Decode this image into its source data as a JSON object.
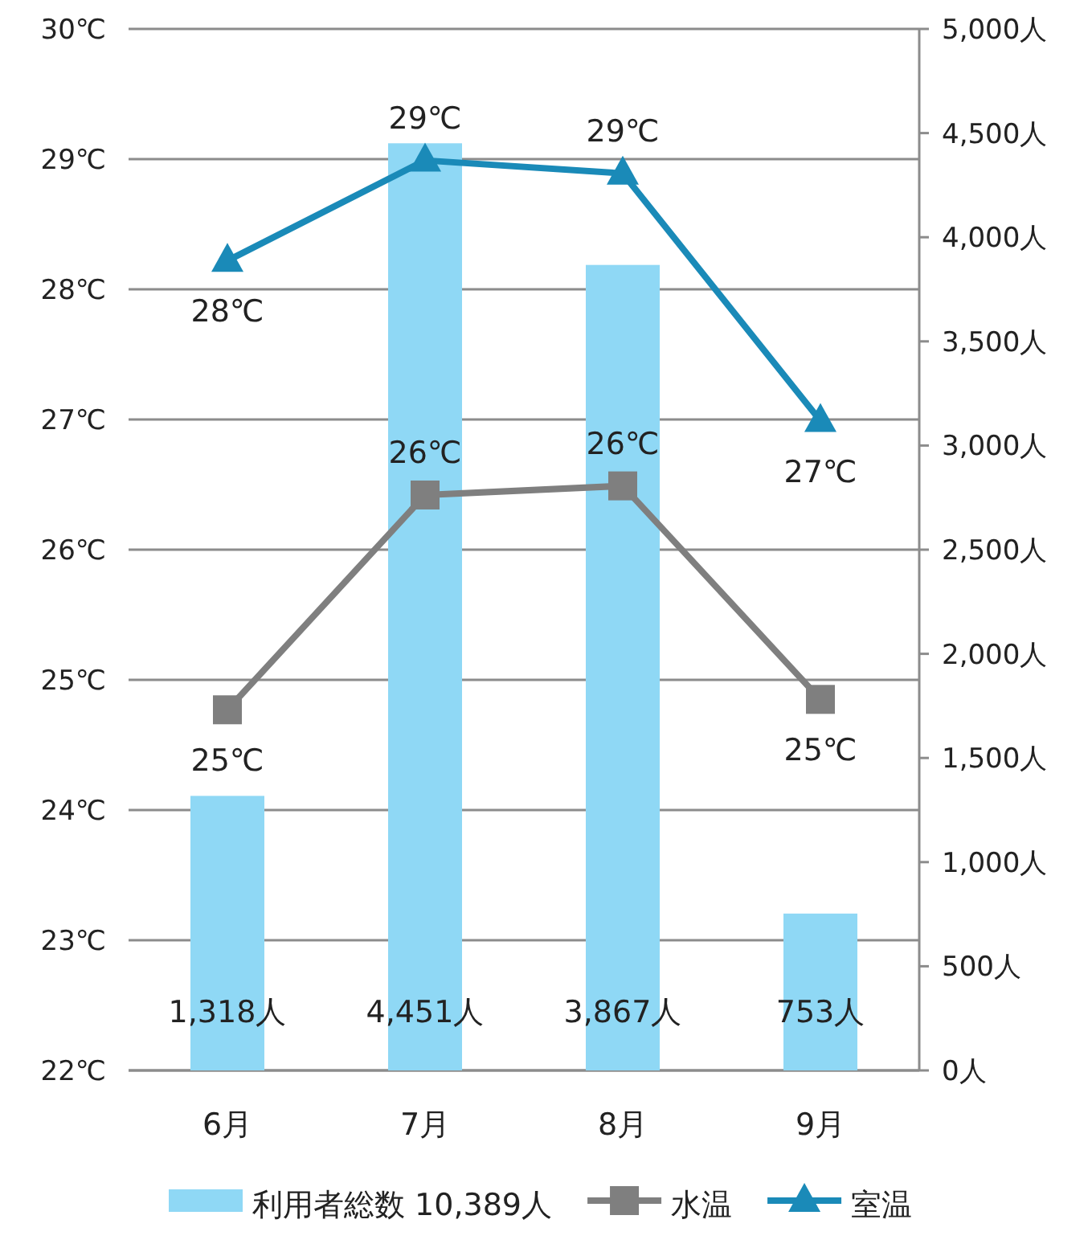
{
  "chart_data": {
    "type": "bar",
    "categories": [
      "6月",
      "7月",
      "8月",
      "9月"
    ],
    "series": [
      {
        "name": "利用者総数 10,389人",
        "axis": "y2",
        "color": "#8fd8f5",
        "values": [
          1318,
          4451,
          3867,
          753
        ],
        "value_labels": [
          "1,318人",
          "4,451人",
          "3,867人",
          "753人"
        ]
      },
      {
        "name": "水温",
        "type": "line",
        "color": "#7f7f7f",
        "marker": "square",
        "values": [
          24.77,
          26.42,
          26.49,
          24.85
        ],
        "value_labels": [
          "25℃",
          "26℃",
          "26℃",
          "25℃"
        ]
      },
      {
        "name": "室温",
        "type": "line",
        "color": "#1a8ab8",
        "marker": "triangle",
        "values": [
          28.22,
          28.99,
          28.89,
          26.99
        ],
        "value_labels": [
          "28℃",
          "29℃",
          "29℃",
          "27℃"
        ]
      }
    ],
    "ylim": [
      22,
      30
    ],
    "yticks": [
      {
        "value": 22,
        "label": "22℃"
      },
      {
        "value": 23,
        "label": "23℃"
      },
      {
        "value": 24,
        "label": "24℃"
      },
      {
        "value": 25,
        "label": "25℃"
      },
      {
        "value": 26,
        "label": "26℃"
      },
      {
        "value": 27,
        "label": "27℃"
      },
      {
        "value": 28,
        "label": "28℃"
      },
      {
        "value": 29,
        "label": "29℃"
      },
      {
        "value": 30,
        "label": "30℃"
      }
    ],
    "y2lim": [
      0,
      5000
    ],
    "y2ticks": [
      {
        "value": 0,
        "label": "0人"
      },
      {
        "value": 500,
        "label": "500人"
      },
      {
        "value": 1000,
        "label": "1,000人"
      },
      {
        "value": 1500,
        "label": "1,500人"
      },
      {
        "value": 2000,
        "label": "2,000人"
      },
      {
        "value": 2500,
        "label": "2,500人"
      },
      {
        "value": 3000,
        "label": "3,000人"
      },
      {
        "value": 3500,
        "label": "3,500人"
      },
      {
        "value": 4000,
        "label": "4,000人"
      },
      {
        "value": 4500,
        "label": "4,500人"
      },
      {
        "value": 5000,
        "label": "5,000人"
      }
    ],
    "grid": "y",
    "legend": "bottom"
  }
}
